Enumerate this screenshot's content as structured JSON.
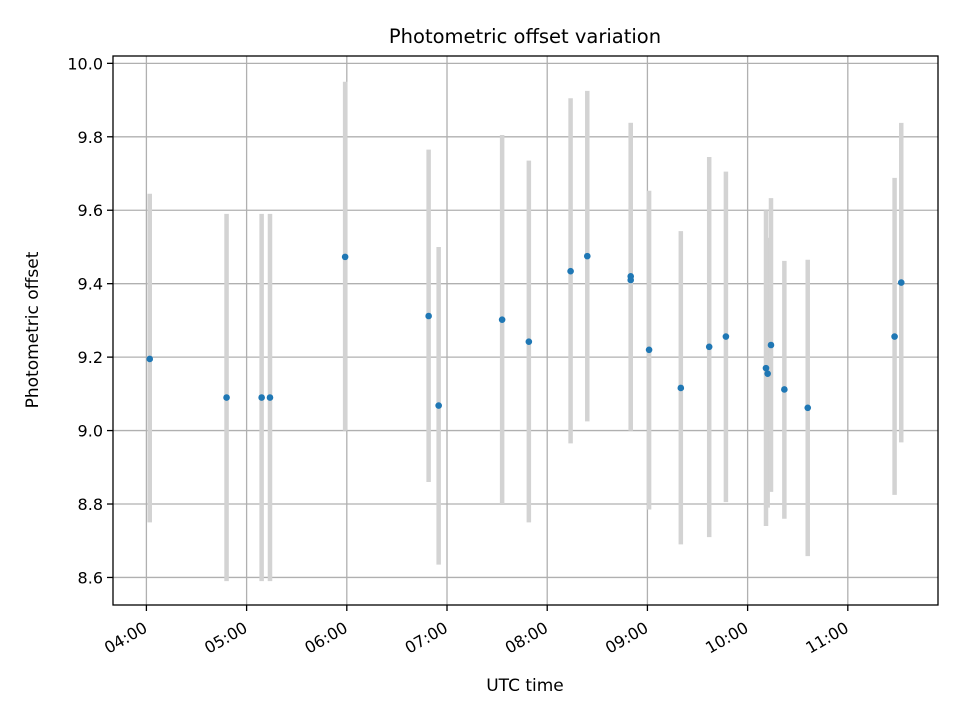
{
  "chart_data": {
    "type": "scatter",
    "title": "Photometric offset variation",
    "xlabel": "UTC time",
    "ylabel": "Photometric offset",
    "xlim": [
      "03:40",
      "11:54"
    ],
    "ylim": [
      8.525,
      10.02
    ],
    "x_ticks": [
      "04:00",
      "05:00",
      "06:00",
      "07:00",
      "08:00",
      "09:00",
      "10:00",
      "11:00"
    ],
    "y_ticks": [
      8.6,
      8.8,
      9.0,
      9.2,
      9.4,
      9.6,
      9.8,
      10.0
    ],
    "grid": true,
    "legend": "none",
    "colors": {
      "points": "#1f77b4",
      "errorbars": "#d3d3d3",
      "grid": "#b0b0b0"
    },
    "points": [
      {
        "x": "04:02",
        "y": 9.195,
        "ylow": 8.75,
        "yhigh": 9.645
      },
      {
        "x": "04:48",
        "y": 9.09,
        "ylow": 8.59,
        "yhigh": 9.59
      },
      {
        "x": "05:09",
        "y": 9.09,
        "ylow": 8.59,
        "yhigh": 9.59
      },
      {
        "x": "05:14",
        "y": 9.09,
        "ylow": 8.59,
        "yhigh": 9.59
      },
      {
        "x": "05:59",
        "y": 9.473,
        "ylow": 9.0,
        "yhigh": 9.95
      },
      {
        "x": "06:49",
        "y": 9.312,
        "ylow": 8.86,
        "yhigh": 9.765
      },
      {
        "x": "06:55",
        "y": 9.068,
        "ylow": 8.635,
        "yhigh": 9.5
      },
      {
        "x": "07:33",
        "y": 9.302,
        "ylow": 8.8,
        "yhigh": 9.805
      },
      {
        "x": "07:49",
        "y": 9.242,
        "ylow": 8.75,
        "yhigh": 9.735
      },
      {
        "x": "08:14",
        "y": 9.434,
        "ylow": 8.965,
        "yhigh": 9.905
      },
      {
        "x": "08:24",
        "y": 9.475,
        "ylow": 9.025,
        "yhigh": 9.925
      },
      {
        "x": "08:50",
        "y": 9.42,
        "ylow": 9.0,
        "yhigh": 9.838
      },
      {
        "x": "08:50",
        "y": 9.41,
        "ylow": 9.0,
        "yhigh": 9.838
      },
      {
        "x": "09:01",
        "y": 9.22,
        "ylow": 8.785,
        "yhigh": 9.653
      },
      {
        "x": "09:20",
        "y": 9.116,
        "ylow": 8.69,
        "yhigh": 9.543
      },
      {
        "x": "09:37",
        "y": 9.228,
        "ylow": 8.71,
        "yhigh": 9.745
      },
      {
        "x": "09:47",
        "y": 9.256,
        "ylow": 8.805,
        "yhigh": 9.705
      },
      {
        "x": "10:11",
        "y": 9.17,
        "ylow": 8.74,
        "yhigh": 9.6
      },
      {
        "x": "10:12",
        "y": 9.155,
        "ylow": 8.79,
        "yhigh": 9.525
      },
      {
        "x": "10:14",
        "y": 9.233,
        "ylow": 8.833,
        "yhigh": 9.633
      },
      {
        "x": "10:22",
        "y": 9.112,
        "ylow": 8.76,
        "yhigh": 9.462
      },
      {
        "x": "10:36",
        "y": 9.062,
        "ylow": 8.658,
        "yhigh": 9.465
      },
      {
        "x": "11:28",
        "y": 9.256,
        "ylow": 8.825,
        "yhigh": 9.688
      },
      {
        "x": "11:32",
        "y": 9.403,
        "ylow": 8.968,
        "yhigh": 9.838
      }
    ]
  }
}
